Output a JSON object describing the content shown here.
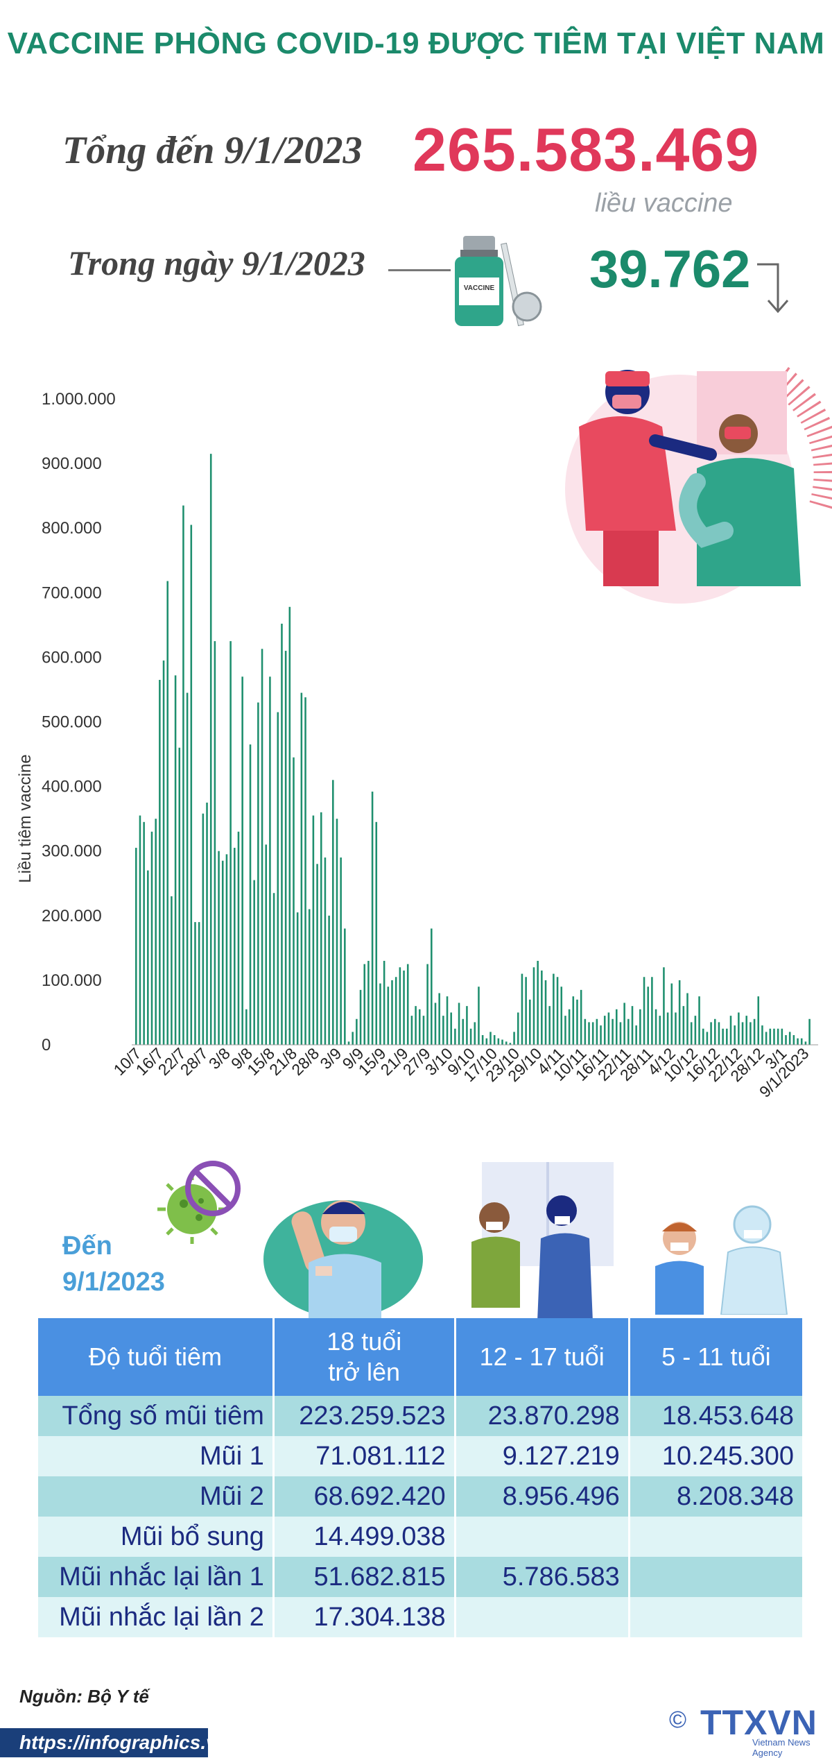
{
  "title": "VACCINE PHÒNG COVID-19 ĐƯỢC TIÊM TẠI VIỆT NAM",
  "summary": {
    "total_label": "Tổng đến 9/1/2023",
    "total_value": "265.583.469",
    "unit": "liều vaccine",
    "day_label": "Trong ngày 9/1/2023",
    "day_value": "39.762",
    "trend_icon": "arrow-down-icon",
    "vial_text": "VACCINE"
  },
  "colors": {
    "title_green": "#1b8a6b",
    "total_red": "#e0385a",
    "bar_green": "#1e8f6e",
    "header_blue": "#4a90e2",
    "row_dark": "#a9dce0",
    "row_light": "#dff4f6",
    "text_navy": "#1b2a80"
  },
  "chart_data": {
    "type": "bar",
    "ylabel": "Liều tiêm vaccine",
    "ylim": [
      0,
      1000000
    ],
    "y_ticks": [
      "0",
      "100.000",
      "200.000",
      "300.000",
      "400.000",
      "500.000",
      "600.000",
      "700.000",
      "800.000",
      "900.000",
      "1.000.000"
    ],
    "x_tick_labels": [
      "10/7",
      "16/7",
      "22/7",
      "28/7",
      "3/8",
      "9/8",
      "15/8",
      "21/8",
      "28/8",
      "3/9",
      "9/9",
      "15/9",
      "21/9",
      "27/9",
      "3/10",
      "9/10",
      "17/10",
      "23/10",
      "29/10",
      "4/11",
      "10/11",
      "16/11",
      "22/11",
      "28/11",
      "4/12",
      "10/12",
      "16/12",
      "22/12",
      "28/12",
      "3/1",
      "9/1/2023"
    ],
    "grid": false,
    "values": [
      305000,
      355000,
      345000,
      270000,
      330000,
      350000,
      565000,
      595000,
      718000,
      230000,
      572000,
      460000,
      835000,
      545000,
      805000,
      190000,
      190000,
      358000,
      375000,
      915000,
      625000,
      300000,
      285000,
      295000,
      625000,
      305000,
      330000,
      570000,
      55000,
      465000,
      255000,
      530000,
      613000,
      310000,
      570000,
      235000,
      515000,
      652000,
      610000,
      678000,
      445000,
      205000,
      545000,
      538000,
      210000,
      355000,
      280000,
      360000,
      290000,
      200000,
      410000,
      350000,
      290000,
      180000,
      5000,
      20000,
      40000,
      85000,
      125000,
      130000,
      392000,
      345000,
      95000,
      130000,
      90000,
      100000,
      105000,
      120000,
      115000,
      125000,
      45000,
      60000,
      55000,
      45000,
      125000,
      180000,
      65000,
      80000,
      45000,
      75000,
      50000,
      25000,
      65000,
      40000,
      60000,
      25000,
      35000,
      90000,
      15000,
      10000,
      20000,
      15000,
      10000,
      8000,
      5000,
      3000,
      20000,
      50000,
      110000,
      105000,
      70000,
      120000,
      130000,
      115000,
      100000,
      60000,
      110000,
      105000,
      90000,
      45000,
      55000,
      75000,
      70000,
      85000,
      40000,
      35000,
      35000,
      40000,
      30000,
      45000,
      50000,
      40000,
      55000,
      35000,
      65000,
      40000,
      60000,
      30000,
      55000,
      105000,
      90000,
      105000,
      55000,
      45000,
      120000,
      50000,
      95000,
      50000,
      100000,
      60000,
      80000,
      35000,
      45000,
      75000,
      25000,
      20000,
      35000,
      40000,
      35000,
      25000,
      25000,
      45000,
      30000,
      50000,
      35000,
      45000,
      35000,
      40000,
      75000,
      30000,
      20000,
      25000,
      25000,
      25000,
      25000,
      15000,
      20000,
      15000,
      10000,
      10000,
      5000,
      40000
    ]
  },
  "table": {
    "date_label": [
      "Đến",
      "9/1/2023"
    ],
    "headers": [
      "Độ tuổi tiêm",
      "18 tuổi",
      "trở lên",
      "12 - 17 tuổi",
      "5 - 11 tuổi"
    ],
    "rows": [
      {
        "label": "Tổng số mũi tiêm",
        "adult": "223.259.523",
        "teen": "23.870.298",
        "child": "18.453.648"
      },
      {
        "label": "Mũi 1",
        "adult": "71.081.112",
        "teen": "9.127.219",
        "child": "10.245.300"
      },
      {
        "label": "Mũi 2",
        "adult": "68.692.420",
        "teen": "8.956.496",
        "child": "8.208.348"
      },
      {
        "label": "Mũi bổ sung",
        "adult": "14.499.038",
        "teen": "",
        "child": ""
      },
      {
        "label": "Mũi nhắc lại lần 1",
        "adult": "51.682.815",
        "teen": "5.786.583",
        "child": ""
      },
      {
        "label": "Mũi nhắc lại lần 2",
        "adult": "17.304.138",
        "teen": "",
        "child": ""
      }
    ]
  },
  "footer": {
    "source": "Nguồn: Bộ Y tế",
    "url": "https://infographics.vn",
    "copyright": "©",
    "logo": "TTXVN",
    "logo_sub": "Vietnam News Agency"
  }
}
